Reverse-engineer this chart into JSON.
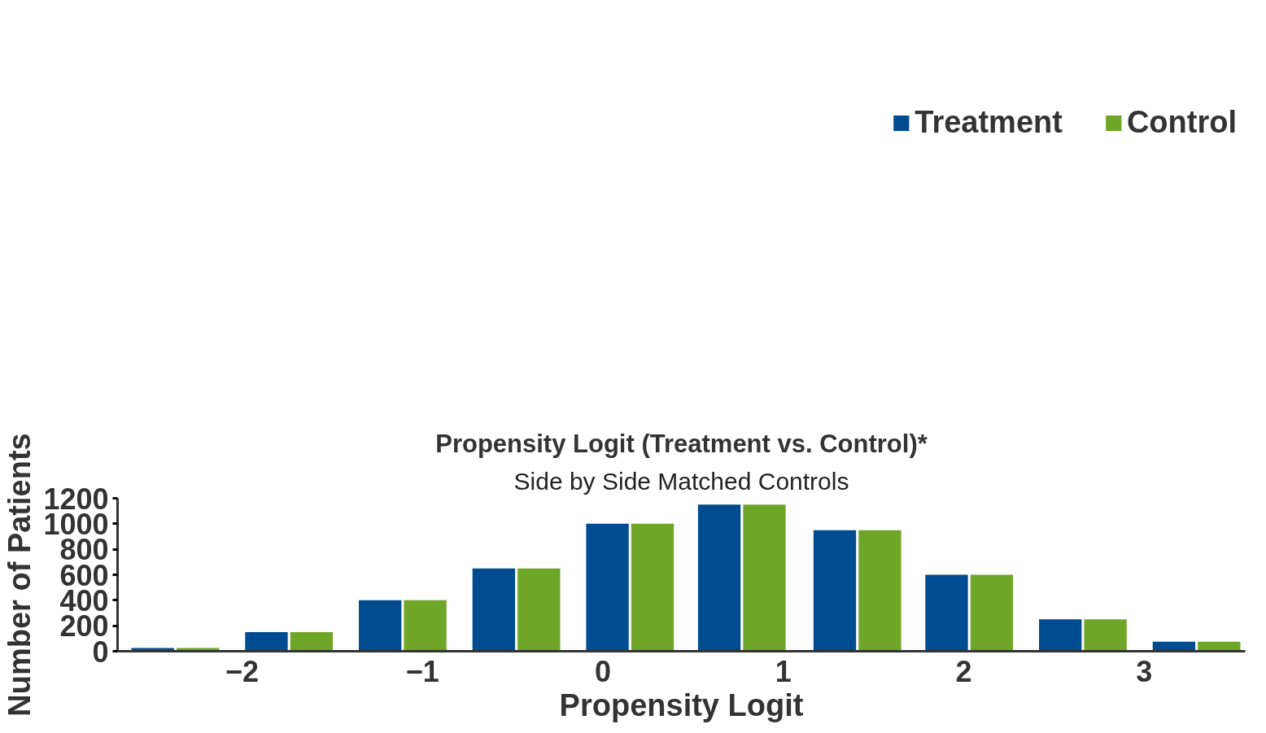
{
  "chart_data": {
    "type": "bar",
    "title": "Propensity Logit (Treatment vs. Control)*",
    "subtitle": "Side by Side Matched Controls",
    "xlabel": "Propensity Logit",
    "ylabel": "Number of Patients",
    "x": [
      -2.37,
      -1.74,
      -1.11,
      -0.48,
      0.15,
      0.77,
      1.41,
      2.03,
      2.66,
      3.29
    ],
    "series": [
      {
        "name": "Treatment",
        "color": "#004c91",
        "values": [
          25,
          150,
          400,
          650,
          1000,
          1150,
          950,
          600,
          250,
          75
        ]
      },
      {
        "name": "Control",
        "color": "#70a628",
        "values": [
          25,
          150,
          400,
          650,
          1000,
          1150,
          950,
          600,
          250,
          75
        ]
      }
    ],
    "xlim": [
      -2.69,
      3.56
    ],
    "xticks": [
      -2,
      -1,
      0,
      1,
      2,
      3
    ],
    "ylim": [
      0,
      1200
    ],
    "yticks": [
      0,
      200,
      400,
      600,
      800,
      1000,
      1200
    ],
    "grid": false,
    "legend": "top"
  }
}
